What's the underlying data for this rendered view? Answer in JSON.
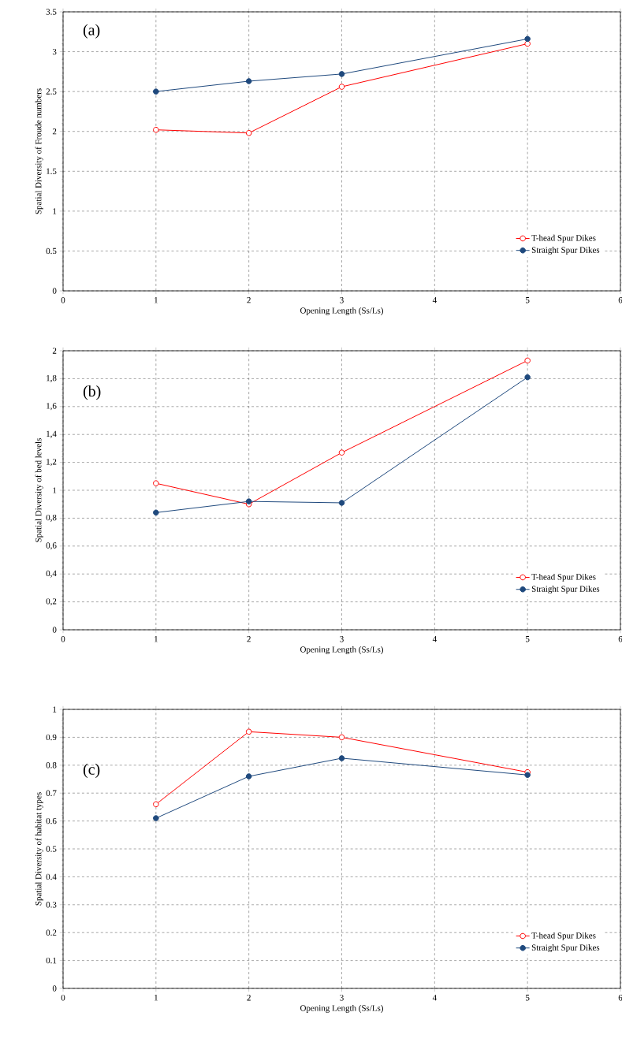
{
  "chart_data": [
    {
      "type": "line",
      "annotations": [
        "(a)"
      ],
      "xlabel": "Opening Length (Ss/Ls)",
      "ylabel": "Spatial Diversity of Froude numbers",
      "x": [
        1,
        2,
        3,
        5
      ],
      "series": [
        {
          "name": "T-head Spur Dikes",
          "color": "#ff0000",
          "values": [
            2.02,
            1.98,
            2.56,
            3.1
          ]
        },
        {
          "name": "Straight Spur Dikes",
          "color": "#1f497d",
          "values": [
            2.5,
            2.63,
            2.72,
            3.16
          ]
        }
      ],
      "xlim": [
        0,
        6
      ],
      "xticks": [
        0,
        1,
        2,
        3,
        4,
        5,
        6
      ],
      "ylim": [
        0,
        3.5
      ],
      "yticks": [
        0,
        0.5,
        1,
        1.5,
        2,
        2.5,
        3,
        3.5
      ],
      "grid": true,
      "legend": "bottom right",
      "marker": "circle",
      "line_style": "solid"
    },
    {
      "type": "line",
      "annotations": [
        "(b)"
      ],
      "xlabel": "Opening Length (Ss/Ls)",
      "ylabel": "Spatial Diversity of bed levels",
      "x": [
        1,
        2,
        3,
        5
      ],
      "series": [
        {
          "name": "T-head Spur Dikes",
          "color": "#ff0000",
          "values": [
            1.05,
            0.9,
            1.27,
            1.93
          ]
        },
        {
          "name": "Straight Spur Dikes",
          "color": "#1f497d",
          "values": [
            0.84,
            0.92,
            0.91,
            1.81
          ]
        }
      ],
      "xlim": [
        0,
        6
      ],
      "xticks": [
        0,
        1,
        2,
        3,
        4,
        5,
        6
      ],
      "ylim": [
        0,
        2
      ],
      "yticks": [
        0,
        {
          "value": 0.2,
          "label": "0,2"
        },
        {
          "value": 0.4,
          "label": "0,4"
        },
        {
          "value": 0.6,
          "label": "0,6"
        },
        {
          "value": 0.8,
          "label": "0,8"
        },
        1,
        {
          "value": 1.2,
          "label": "1,2"
        },
        {
          "value": 1.4,
          "label": "1,4"
        },
        {
          "value": 1.6,
          "label": "1,6"
        },
        {
          "value": 1.8,
          "label": "1,8"
        },
        2
      ],
      "grid": true,
      "legend": "bottom right",
      "marker": "circle",
      "line_style": "solid"
    },
    {
      "type": "line",
      "annotations": [
        "(c)"
      ],
      "xlabel": "Opening Length (Ss/Ls)",
      "ylabel": "Spatial Diversity of habitat types",
      "x": [
        1,
        2,
        3,
        5
      ],
      "series": [
        {
          "name": "T-head Spur Dikes",
          "color": "#ff0000",
          "values": [
            0.66,
            0.92,
            0.9,
            0.775
          ]
        },
        {
          "name": "Straight Spur Dikes",
          "color": "#1f497d",
          "values": [
            0.61,
            0.76,
            0.825,
            0.765
          ]
        }
      ],
      "xlim": [
        0,
        6
      ],
      "xticks": [
        0,
        1,
        2,
        3,
        4,
        5,
        6
      ],
      "ylim": [
        0,
        1
      ],
      "yticks": [
        0,
        0.1,
        0.2,
        0.3,
        0.4,
        0.5,
        0.6,
        0.7,
        0.8,
        0.9,
        1
      ],
      "grid": true,
      "legend": "bottom right",
      "marker": "circle",
      "line_style": "solid"
    }
  ]
}
